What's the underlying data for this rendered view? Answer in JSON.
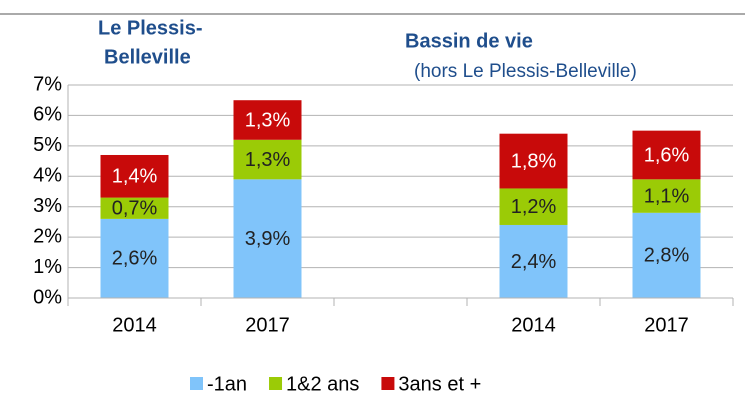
{
  "chart_data": {
    "type": "stacked_bar",
    "categories": [
      "2014",
      "2017",
      null,
      "2014",
      "2017"
    ],
    "series": [
      {
        "name": "-1an",
        "color": "#80c4fa",
        "values": [
          2.6,
          3.9,
          null,
          2.4,
          2.8
        ],
        "value_labels": [
          "2,6%",
          "3,9%",
          null,
          "2,4%",
          "2,8%"
        ]
      },
      {
        "name": "1&2 ans",
        "color": "#9bcb06",
        "values": [
          0.7,
          1.3,
          null,
          1.2,
          1.1
        ],
        "value_labels": [
          "0,7%",
          "1,3%",
          null,
          "1,2%",
          "1,1%"
        ]
      },
      {
        "name": "3ans et +",
        "color": "#c80a0a",
        "values": [
          1.4,
          1.3,
          null,
          1.8,
          1.6
        ],
        "value_labels": [
          "1,4%",
          "1,3%",
          null,
          "1,8%",
          "1,6%"
        ]
      }
    ],
    "ylim": [
      0,
      7
    ],
    "yticks": [
      {
        "value": 0,
        "label": "0%"
      },
      {
        "value": 1,
        "label": "1%"
      },
      {
        "value": 2,
        "label": "2%"
      },
      {
        "value": 3,
        "label": "3%"
      },
      {
        "value": 4,
        "label": "4%"
      },
      {
        "value": 5,
        "label": "5%"
      },
      {
        "value": 6,
        "label": "6%"
      },
      {
        "value": 7,
        "label": "7%"
      }
    ],
    "grid": true,
    "legend": "bottom",
    "annotations": [
      {
        "lines": [
          "Le Plessis-",
          "Belleville"
        ]
      },
      {
        "lines": [
          "Bassin de vie",
          "(hors Le Plessis-Belleville)"
        ]
      }
    ]
  }
}
